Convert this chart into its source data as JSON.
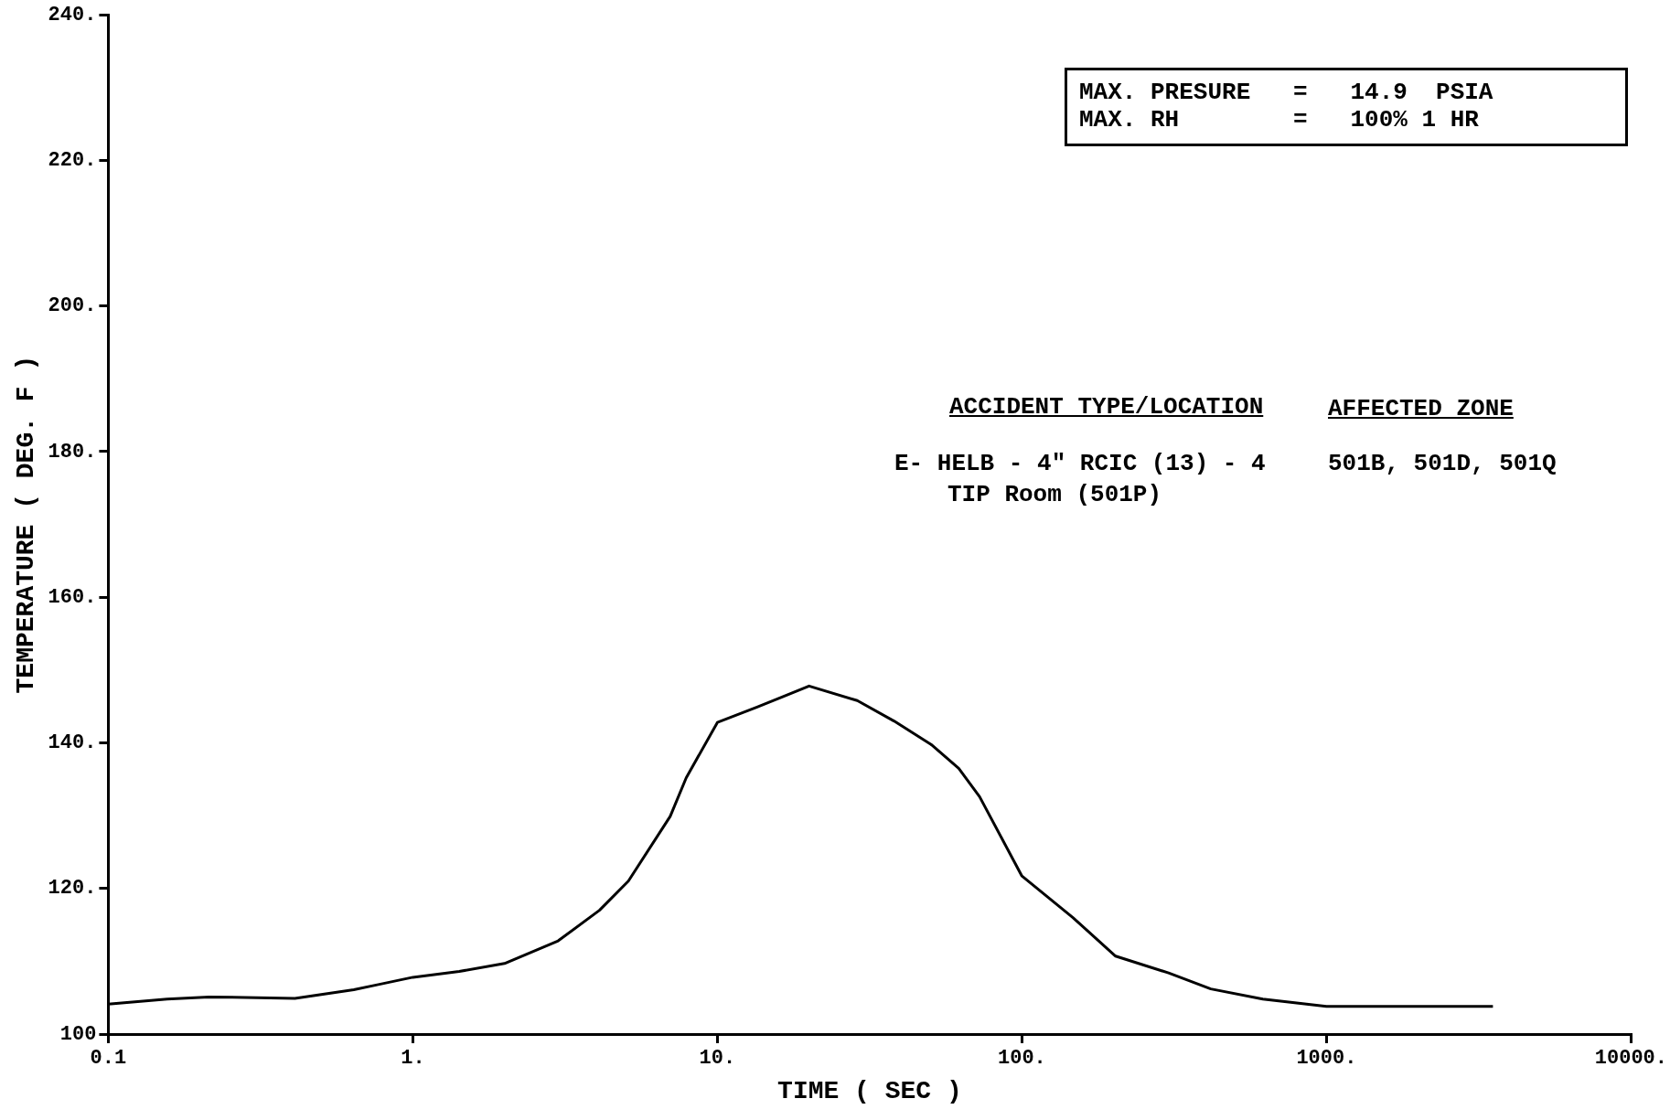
{
  "chart_data": {
    "type": "line",
    "xlabel": "TIME ( SEC )",
    "ylabel": "TEMPERATURE ( DEG. F )",
    "log": "x",
    "grid": false,
    "legend": false,
    "marker": "none",
    "line_style": "solid",
    "xlim": [
      0.1,
      10000
    ],
    "ylim": [
      100,
      240
    ],
    "xticks": [
      0.1,
      {
        "value": 1,
        "label": "1."
      },
      {
        "value": 10,
        "label": "10."
      },
      {
        "value": 100,
        "label": "100."
      },
      {
        "value": 1000,
        "label": "1000."
      },
      {
        "value": 10000,
        "label": "10000."
      }
    ],
    "yticks": [
      100,
      {
        "value": 120,
        "label": "120."
      },
      {
        "value": 140,
        "label": "140."
      },
      {
        "value": 160,
        "label": "160."
      },
      {
        "value": 180,
        "label": "180."
      },
      {
        "value": 200,
        "label": "200."
      },
      {
        "value": 220,
        "label": "220."
      },
      {
        "value": 240,
        "label": "240."
      }
    ],
    "x": [
      0.1,
      0.156,
      0.214,
      0.41,
      0.64,
      0.77,
      1,
      1.42,
      2,
      3,
      4.1,
      5.1,
      7,
      7.9,
      10,
      13.5,
      20,
      28.8,
      38,
      50.6,
      62,
      72.6,
      100,
      147,
      203,
      303,
      417,
      618,
      1000,
      3520
    ],
    "series": [
      {
        "color": "#000000",
        "values": [
          104.1,
          104.8,
          105.1,
          104.9,
          106.1,
          106.8,
          107.8,
          108.6,
          109.7,
          112.8,
          117,
          121,
          129.9,
          135.2,
          142.8,
          144.9,
          147.8,
          145.8,
          143,
          139.7,
          136.5,
          132.6,
          121.7,
          116,
          110.7,
          108.4,
          106.2,
          104.8,
          103.8,
          103.8
        ]
      }
    ],
    "annotations": [
      "MAX. PRESURE   =   14.9  PSIA",
      "MAX. RH        =   100% 1 HR",
      "ACCIDENT TYPE/LOCATION",
      "AFFECTED ZONE",
      "E- HELB - 4\" RCIC (13) - 4",
      "TIP Room (501P)",
      "501B, 501D, 501Q"
    ]
  }
}
